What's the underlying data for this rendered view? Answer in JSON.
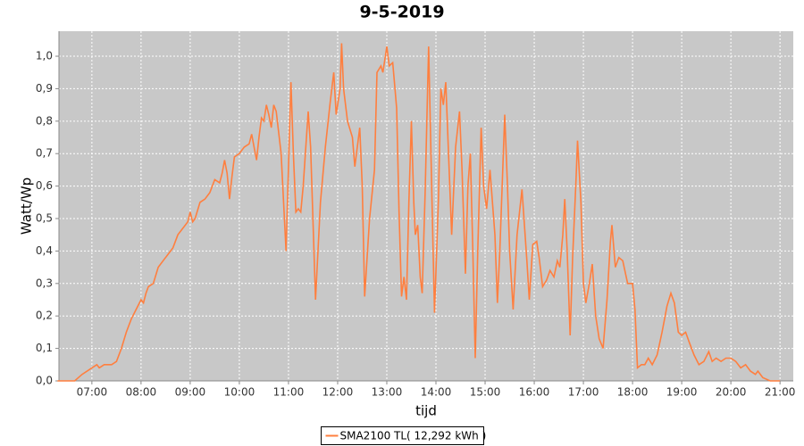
{
  "chart_data": {
    "type": "line",
    "title": "9-5-2019",
    "x_label": "tijd",
    "y_label": "Watt/Wp",
    "legend": "bottom",
    "grid": true,
    "xlim": [
      6.33,
      21.27
    ],
    "ylim": [
      0,
      1.077
    ],
    "xticks": [
      {
        "value": 7,
        "label": "07:00"
      },
      {
        "value": 8,
        "label": "08:00"
      },
      {
        "value": 9,
        "label": "09:00"
      },
      {
        "value": 10,
        "label": "10:00"
      },
      {
        "value": 11,
        "label": "11:00"
      },
      {
        "value": 12,
        "label": "12:00"
      },
      {
        "value": 13,
        "label": "13:00"
      },
      {
        "value": 14,
        "label": "14:00"
      },
      {
        "value": 15,
        "label": "15:00"
      },
      {
        "value": 16,
        "label": "16:00"
      },
      {
        "value": 17,
        "label": "17:00"
      },
      {
        "value": 18,
        "label": "18:00"
      },
      {
        "value": 19,
        "label": "19:00"
      },
      {
        "value": 20,
        "label": "20:00"
      },
      {
        "value": 21,
        "label": "21:00"
      }
    ],
    "yticks": [
      {
        "value": 0,
        "label": "0,0"
      },
      {
        "value": 0.1,
        "label": "0,1"
      },
      {
        "value": 0.2,
        "label": "0,2"
      },
      {
        "value": 0.3,
        "label": "0,3"
      },
      {
        "value": 0.4,
        "label": "0,4"
      },
      {
        "value": 0.5,
        "label": "0,5"
      },
      {
        "value": 0.6,
        "label": "0,6"
      },
      {
        "value": 0.7,
        "label": "0,7"
      },
      {
        "value": 0.8,
        "label": "0,8"
      },
      {
        "value": 0.9,
        "label": "0,9"
      },
      {
        "value": 1.0,
        "label": "1,0"
      }
    ],
    "x": [
      6.3,
      6.65,
      6.8,
      7.0,
      7.1,
      7.15,
      7.25,
      7.4,
      7.5,
      7.6,
      7.7,
      7.8,
      7.9,
      8.0,
      8.05,
      8.1,
      8.15,
      8.25,
      8.35,
      8.45,
      8.55,
      8.65,
      8.75,
      8.85,
      8.95,
      9.0,
      9.05,
      9.1,
      9.2,
      9.3,
      9.4,
      9.5,
      9.6,
      9.65,
      9.7,
      9.75,
      9.8,
      9.85,
      9.9,
      10.0,
      10.1,
      10.2,
      10.25,
      10.3,
      10.35,
      10.4,
      10.45,
      10.5,
      10.55,
      10.6,
      10.65,
      10.7,
      10.75,
      10.85,
      10.95,
      11.05,
      11.1,
      11.15,
      11.2,
      11.25,
      11.3,
      11.4,
      11.45,
      11.55,
      11.65,
      11.75,
      11.85,
      11.92,
      11.97,
      12.05,
      12.08,
      12.12,
      12.2,
      12.3,
      12.35,
      12.45,
      12.5,
      12.55,
      12.65,
      12.75,
      12.8,
      12.88,
      12.92,
      13.0,
      13.05,
      13.12,
      13.15,
      13.2,
      13.25,
      13.3,
      13.35,
      13.4,
      13.45,
      13.5,
      13.55,
      13.58,
      13.63,
      13.68,
      13.72,
      13.78,
      13.85,
      13.92,
      13.97,
      14.05,
      14.1,
      14.15,
      14.2,
      14.25,
      14.32,
      14.4,
      14.48,
      14.53,
      14.6,
      14.65,
      14.7,
      14.75,
      14.8,
      14.85,
      14.92,
      14.97,
      15.03,
      15.1,
      15.2,
      15.25,
      15.3,
      15.4,
      15.45,
      15.5,
      15.57,
      15.65,
      15.75,
      15.85,
      15.9,
      15.97,
      16.05,
      16.1,
      16.17,
      16.25,
      16.32,
      16.4,
      16.47,
      16.52,
      16.58,
      16.62,
      16.67,
      16.73,
      16.78,
      16.85,
      16.88,
      16.95,
      17.0,
      17.05,
      17.12,
      17.18,
      17.25,
      17.32,
      17.4,
      17.48,
      17.55,
      17.58,
      17.65,
      17.72,
      17.8,
      17.9,
      18.0,
      18.05,
      18.1,
      18.18,
      18.25,
      18.32,
      18.4,
      18.5,
      18.6,
      18.7,
      18.78,
      18.85,
      18.93,
      19.0,
      19.08,
      19.15,
      19.25,
      19.35,
      19.45,
      19.55,
      19.62,
      19.7,
      19.8,
      19.9,
      20.0,
      20.1,
      20.2,
      20.3,
      20.4,
      20.5,
      20.55,
      20.65,
      20.8,
      21.0
    ],
    "series": [
      {
        "name": "SMA2100 TL( 12,292 kWh )",
        "color": "#ff7f3f",
        "values": [
          0.0,
          0.0,
          0.02,
          0.04,
          0.05,
          0.04,
          0.05,
          0.05,
          0.06,
          0.1,
          0.15,
          0.19,
          0.22,
          0.25,
          0.24,
          0.27,
          0.29,
          0.3,
          0.35,
          0.37,
          0.39,
          0.41,
          0.45,
          0.47,
          0.49,
          0.52,
          0.49,
          0.5,
          0.55,
          0.56,
          0.58,
          0.62,
          0.61,
          0.64,
          0.68,
          0.64,
          0.56,
          0.63,
          0.69,
          0.7,
          0.72,
          0.73,
          0.76,
          0.72,
          0.68,
          0.75,
          0.81,
          0.8,
          0.85,
          0.82,
          0.78,
          0.85,
          0.83,
          0.7,
          0.4,
          0.92,
          0.7,
          0.52,
          0.53,
          0.52,
          0.6,
          0.83,
          0.72,
          0.25,
          0.55,
          0.72,
          0.86,
          0.95,
          0.82,
          0.9,
          1.04,
          0.9,
          0.8,
          0.75,
          0.66,
          0.78,
          0.6,
          0.26,
          0.5,
          0.65,
          0.95,
          0.97,
          0.95,
          1.03,
          0.97,
          0.98,
          0.93,
          0.84,
          0.52,
          0.26,
          0.32,
          0.25,
          0.55,
          0.8,
          0.55,
          0.45,
          0.48,
          0.32,
          0.27,
          0.58,
          1.03,
          0.55,
          0.21,
          0.56,
          0.9,
          0.85,
          0.92,
          0.72,
          0.45,
          0.72,
          0.83,
          0.65,
          0.33,
          0.6,
          0.7,
          0.4,
          0.07,
          0.4,
          0.78,
          0.6,
          0.53,
          0.65,
          0.45,
          0.24,
          0.4,
          0.82,
          0.62,
          0.4,
          0.22,
          0.45,
          0.59,
          0.37,
          0.25,
          0.42,
          0.43,
          0.38,
          0.29,
          0.31,
          0.34,
          0.32,
          0.37,
          0.35,
          0.45,
          0.56,
          0.4,
          0.14,
          0.38,
          0.62,
          0.74,
          0.55,
          0.3,
          0.24,
          0.3,
          0.36,
          0.2,
          0.13,
          0.1,
          0.25,
          0.43,
          0.48,
          0.35,
          0.38,
          0.37,
          0.3,
          0.3,
          0.22,
          0.04,
          0.05,
          0.05,
          0.07,
          0.05,
          0.08,
          0.15,
          0.23,
          0.27,
          0.24,
          0.15,
          0.14,
          0.15,
          0.12,
          0.08,
          0.05,
          0.06,
          0.09,
          0.06,
          0.07,
          0.06,
          0.07,
          0.07,
          0.06,
          0.04,
          0.05,
          0.03,
          0.02,
          0.03,
          0.01,
          0.0,
          0.0
        ]
      }
    ]
  }
}
